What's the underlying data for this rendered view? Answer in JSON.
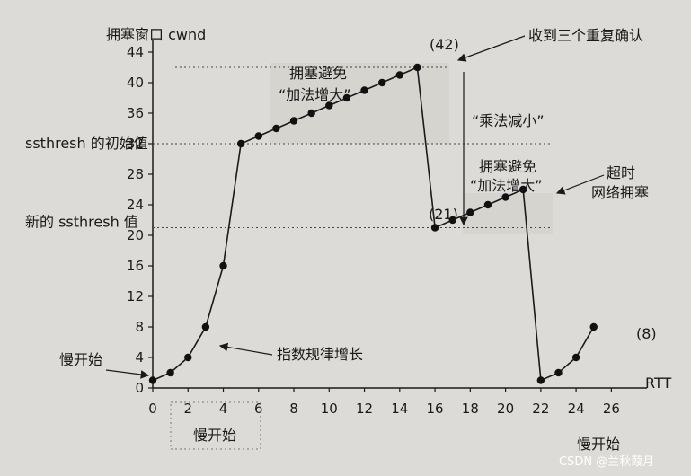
{
  "watermark": "CSDN @兰秋葭月",
  "chart_data": {
    "type": "line",
    "title": "",
    "xlabel": "RTT",
    "ylabel": "拥塞窗口 cwnd",
    "xlim": [
      0,
      27
    ],
    "ylim": [
      0,
      44
    ],
    "x_ticks": [
      0,
      2,
      4,
      6,
      8,
      10,
      12,
      14,
      16,
      18,
      20,
      22,
      24,
      26
    ],
    "y_ticks": [
      0,
      4,
      8,
      12,
      16,
      20,
      24,
      28,
      32,
      36,
      40,
      44
    ],
    "grid": false,
    "series": [
      {
        "x": [
          0,
          1,
          2,
          3,
          4,
          5,
          6,
          7,
          8,
          9,
          10,
          11,
          12,
          13,
          14,
          15,
          16,
          17,
          18,
          19,
          20,
          21,
          22,
          23,
          24,
          25,
          26
        ],
        "values": [
          1,
          2,
          4,
          8,
          16,
          32,
          33,
          34,
          35,
          36,
          37,
          38,
          39,
          40,
          41,
          42,
          21,
          22,
          23,
          24,
          25,
          26,
          1,
          2,
          4,
          8,
          null
        ]
      }
    ],
    "thresholds": [
      {
        "label": "ssthresh 的初始值",
        "value": 32
      },
      {
        "label": "新的 ssthresh 值",
        "value": 21
      }
    ],
    "annotations": [
      {
        "text": "(42)"
      },
      {
        "text": "收到三个重复确认"
      },
      {
        "text": "拥塞避免"
      },
      {
        "text": "“加法增大”"
      },
      {
        "text": "“乘法减小”"
      },
      {
        "text": "拥塞避免"
      },
      {
        "text": "“加法增大”"
      },
      {
        "text": "(21)"
      },
      {
        "text": "超时"
      },
      {
        "text": "网络拥塞"
      },
      {
        "text": "慢开始"
      },
      {
        "text": "指数规律增长"
      },
      {
        "text": "慢开始"
      },
      {
        "text": "慢开始"
      },
      {
        "text": "(8)"
      }
    ]
  }
}
